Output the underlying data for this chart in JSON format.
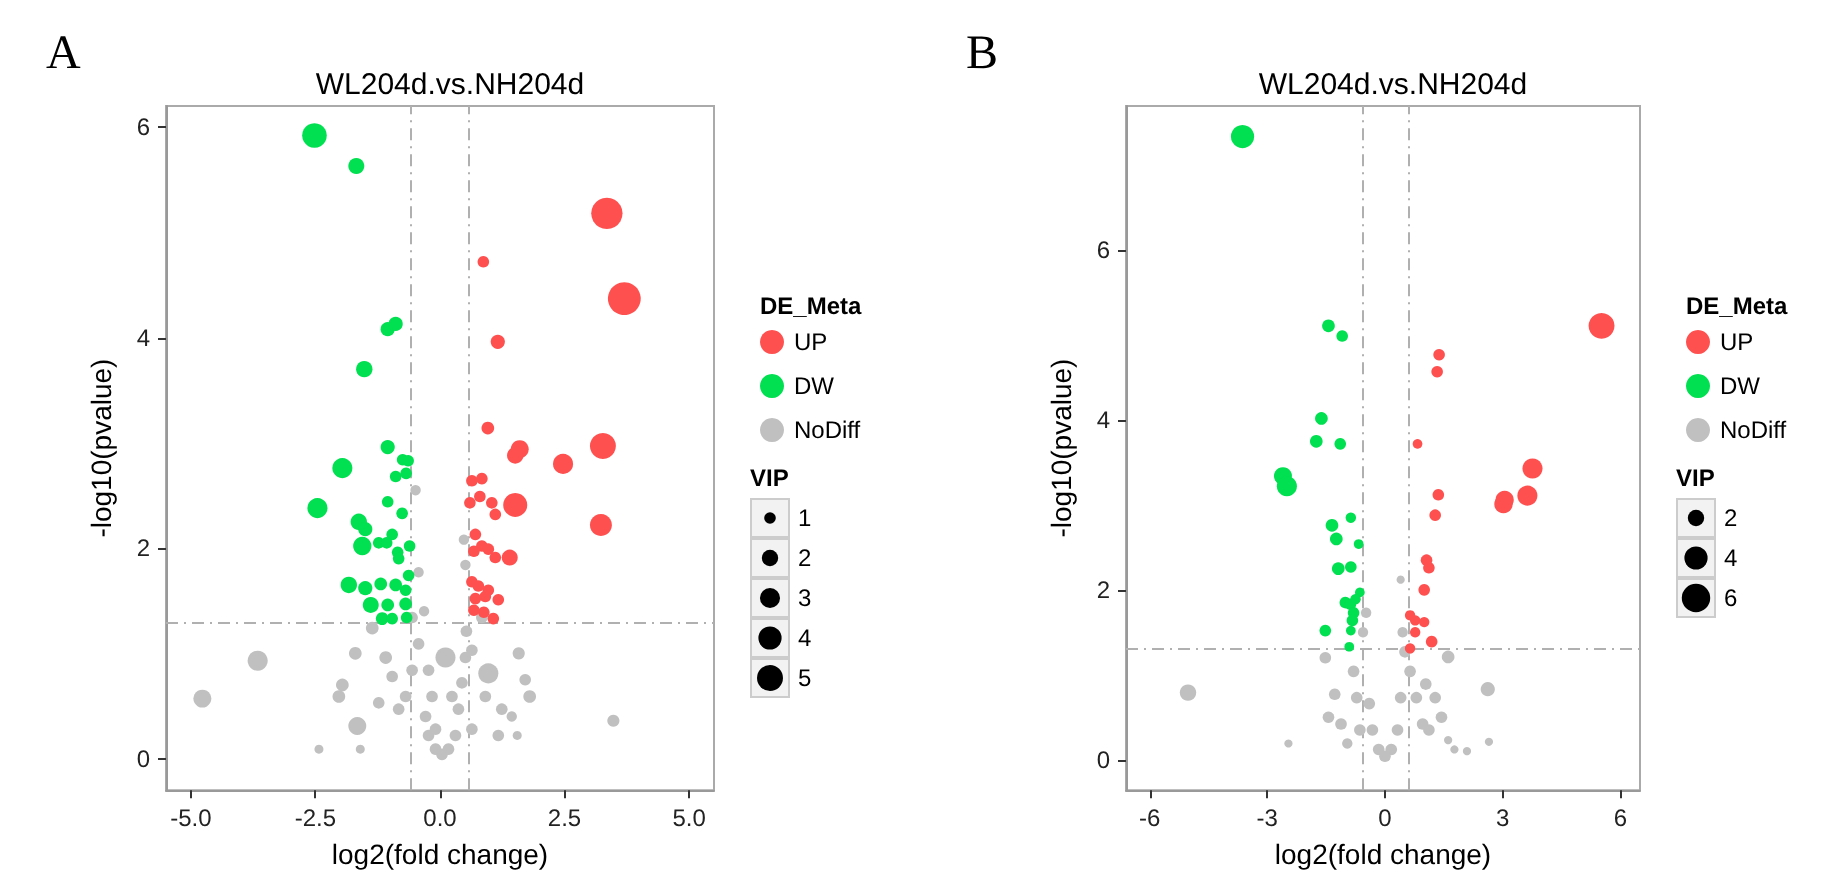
{
  "chart_data": [
    {
      "type": "bubble",
      "title": "WL204d.vs.NH204d",
      "xlabel": "log2(fold change)",
      "ylabel": "-log10(pvalue)",
      "legend_title": [
        "DE_Meta",
        "VIP"
      ],
      "annotations": [
        "A"
      ],
      "xlim": [
        -5.5,
        5.5
      ],
      "xticks": [
        {
          "value": -5,
          "label": "-5.0"
        },
        {
          "value": -2.5,
          "label": "-2.5"
        },
        {
          "value": 0,
          "label": "0.0"
        },
        {
          "value": 2.5,
          "label": "2.5"
        },
        {
          "value": 5,
          "label": "5.0"
        }
      ],
      "ylim": [
        -0.3,
        6.2
      ],
      "yticks": [
        0,
        2,
        4,
        6
      ],
      "grid": false,
      "legend": "right",
      "marker": "circle",
      "size_legend": [
        1,
        2,
        3,
        4,
        5
      ],
      "ref_lines": [
        {
          "axis": "x",
          "value": -0.58,
          "color": "#b0b0b0",
          "line_style": "dashed"
        },
        {
          "axis": "x",
          "value": 0.58,
          "color": "#b0b0b0",
          "line_style": "dashed"
        },
        {
          "axis": "y",
          "value": 1.3,
          "color": "#b0b0b0",
          "line_style": "dashed"
        }
      ],
      "series": [
        {
          "name": "UP",
          "color": "#ff5050",
          "x": [
            3.35,
            0.87,
            3.7,
            1.16,
            0.96,
            1.6,
            1.51,
            2.47,
            3.27,
            0.64,
            0.84,
            0.8,
            0.6,
            1.04,
            1.11,
            1.51,
            3.23,
            0.71,
            0.68,
            0.84,
            0.97,
            1.11,
            1.4,
            0.64,
            0.77,
            0.97,
            0.71,
            0.91,
            1.17,
            0.68,
            0.88,
            1.07
          ],
          "values": [
            5.18,
            4.72,
            4.37,
            3.96,
            3.14,
            2.94,
            2.88,
            2.8,
            2.97,
            2.64,
            2.66,
            2.49,
            2.43,
            2.43,
            2.32,
            2.41,
            2.22,
            2.13,
            1.97,
            2.02,
            1.99,
            1.91,
            1.91,
            1.68,
            1.64,
            1.6,
            1.52,
            1.54,
            1.51,
            1.41,
            1.39,
            1.33
          ],
          "sizes": [
            7.3,
            1,
            8,
            1.5,
            1.2,
            2.4,
            2,
            3,
            5,
            1,
            1,
            1,
            1,
            1,
            1,
            4.3,
            3.6,
            1,
            1,
            1,
            1,
            1,
            1.9,
            1,
            1,
            1,
            1,
            1,
            1,
            1,
            1,
            1
          ]
        },
        {
          "name": "DW",
          "color": "#00e050",
          "x": [
            -2.52,
            -1.68,
            -1.05,
            -0.89,
            -1.52,
            -1.05,
            -1.96,
            -0.75,
            -0.64,
            -0.89,
            -0.68,
            -2.46,
            -1.05,
            -0.76,
            -1.63,
            -1.5,
            -1.56,
            -1.23,
            -0.96,
            -1.07,
            -0.85,
            -0.61,
            -0.83,
            -0.63,
            -1.83,
            -1.5,
            -1.19,
            -0.89,
            -0.69,
            -1.39,
            -1.05,
            -0.69,
            -1.16,
            -0.96,
            -0.67
          ],
          "values": [
            5.92,
            5.63,
            4.08,
            4.13,
            3.7,
            2.96,
            2.76,
            2.84,
            2.83,
            2.68,
            2.71,
            2.38,
            2.44,
            2.33,
            2.25,
            2.18,
            2.02,
            2.05,
            2.13,
            2.05,
            1.96,
            2.02,
            1.9,
            1.74,
            1.65,
            1.62,
            1.66,
            1.65,
            1.6,
            1.46,
            1.46,
            1.47,
            1.33,
            1.33,
            1.34
          ],
          "sizes": [
            4.5,
            1.9,
            1.5,
            1.5,
            2,
            1.5,
            3,
            1,
            1,
            1,
            1,
            3,
            1,
            1,
            2,
            1.5,
            2.5,
            1,
            1,
            1,
            1,
            1,
            1,
            1,
            2,
            1.5,
            1.2,
            1.2,
            1,
            1.9,
            1.2,
            1.2,
            1.2,
            1,
            1
          ]
        },
        {
          "name": "NoDiff",
          "color": "#c0c0c0",
          "x": [
            -4.77,
            -3.66,
            -2.43,
            -1.6,
            3.48,
            1.58,
            1.71,
            1.8,
            -1.96,
            -2.03,
            -1.66,
            -1.7,
            -1.36,
            -1.09,
            -0.96,
            -1.23,
            -0.83,
            -0.69,
            -0.56,
            -0.43,
            -0.49,
            -0.43,
            -0.32,
            -0.56,
            -0.29,
            -0.23,
            -0.09,
            0.04,
            0.17,
            0.31,
            0.11,
            0.37,
            0.44,
            0.51,
            0.53,
            0.51,
            0.48,
            0.64,
            0.84,
            0.97,
            0.91,
            1.24,
            0.64,
            1.17,
            1.55,
            1.44,
            -0.16,
            -0.09,
            -0.23,
            0.24
          ],
          "values": [
            0.57,
            0.93,
            0.09,
            0.09,
            0.36,
            1.0,
            0.75,
            0.59,
            0.7,
            0.59,
            0.31,
            1.0,
            1.24,
            0.96,
            0.78,
            0.53,
            0.47,
            0.59,
            0.84,
            1.09,
            2.55,
            1.77,
            1.4,
            1.34,
            0.4,
            0.22,
            0.09,
            0.04,
            0.09,
            0.22,
            0.96,
            0.47,
            0.72,
            0.96,
            1.21,
            1.84,
            2.08,
            1.03,
            1.34,
            0.81,
            0.59,
            0.47,
            0.28,
            0.22,
            0.22,
            0.4,
            0.59,
            0.28,
            0.84,
            0.59
          ],
          "sizes": [
            2.4,
            3,
            0.6,
            0.6,
            1.1,
            1.1,
            1,
            1.2,
            1.2,
            1.2,
            2.4,
            1.2,
            1.2,
            1.2,
            1,
            1,
            1,
            1,
            1,
            1,
            0.8,
            0.8,
            0.8,
            1,
            1,
            1,
            1,
            1,
            1,
            1,
            3,
            1,
            1,
            1,
            1,
            0.8,
            0.8,
            1,
            1,
            3,
            1,
            1,
            1,
            1,
            0.6,
            0.8,
            1,
            1,
            1,
            1
          ]
        }
      ]
    },
    {
      "type": "bubble",
      "title": "WL204d.vs.NH204d",
      "xlabel": "log2(fold change)",
      "ylabel": "-log10(pvalue)",
      "legend_title": [
        "DE_Meta",
        "VIP"
      ],
      "annotations": [
        "B"
      ],
      "xlim": [
        -6.6,
        6.5
      ],
      "xticks": [
        -6,
        -3,
        0,
        3,
        6
      ],
      "ylim": [
        -0.36,
        7.7
      ],
      "yticks": [
        0,
        2,
        4,
        6
      ],
      "grid": false,
      "legend": "right",
      "marker": "circle",
      "size_legend": [
        2,
        4,
        6
      ],
      "ref_lines": [
        {
          "axis": "x",
          "value": -0.58,
          "color": "#b0b0b0",
          "line_style": "dashed"
        },
        {
          "axis": "x",
          "value": 0.58,
          "color": "#b0b0b0",
          "line_style": "dashed"
        },
        {
          "axis": "y",
          "value": 1.3,
          "color": "#b0b0b0",
          "line_style": "dashed"
        }
      ],
      "series": [
        {
          "name": "UP",
          "color": "#ff5050",
          "x": [
            5.52,
            1.38,
            1.33,
            0.83,
            3.76,
            3.63,
            3.02,
            3.05,
            1.36,
            1.28,
            1.06,
            1.12,
            1.0,
            0.64,
            0.77,
            1.0,
            0.77,
            1.19,
            0.64
          ],
          "values": [
            5.11,
            4.77,
            4.57,
            3.72,
            3.43,
            3.11,
            3.01,
            3.06,
            3.12,
            2.88,
            2.35,
            2.26,
            2.0,
            1.7,
            1.64,
            1.62,
            1.5,
            1.39,
            1.31
          ],
          "sizes": [
            5,
            1,
            1,
            0.7,
            3,
            3,
            2.5,
            2.5,
            1,
            1,
            1,
            1,
            1,
            0.8,
            0.8,
            0.8,
            0.8,
            1,
            0.8
          ]
        },
        {
          "name": "DW",
          "color": "#00e050",
          "x": [
            -3.63,
            -1.44,
            -1.09,
            -1.62,
            -1.75,
            -1.14,
            -2.6,
            -2.5,
            -0.87,
            -1.35,
            -1.24,
            -0.67,
            -0.87,
            -1.19,
            -0.64,
            -0.75,
            -1.01,
            -0.88,
            -0.8,
            -0.83,
            -1.52,
            -0.87,
            -0.91
          ],
          "values": [
            7.34,
            5.11,
            4.99,
            4.02,
            3.75,
            3.72,
            3.34,
            3.22,
            2.85,
            2.76,
            2.6,
            2.54,
            2.27,
            2.25,
            1.97,
            1.89,
            1.85,
            1.83,
            1.73,
            1.64,
            1.52,
            1.52,
            1.33
          ],
          "sizes": [
            4,
            1.2,
            1,
            1.2,
            1.2,
            1,
            2.4,
            3,
            0.8,
            1.2,
            1.2,
            0.7,
            1,
            1.2,
            0.7,
            0.8,
            1,
            1,
            1,
            1,
            1,
            0.7,
            0.7
          ]
        },
        {
          "name": "NoDiff",
          "color": "#c0c0c0",
          "x": [
            -5.02,
            2.62,
            1.61,
            -2.46,
            2.65,
            2.09,
            1.61,
            1.77,
            -1.52,
            -1.28,
            -1.44,
            -0.96,
            -0.8,
            -0.72,
            -0.64,
            -0.56,
            -0.48,
            -0.4,
            -0.32,
            -0.16,
            0,
            0.16,
            0.32,
            0.4,
            0.45,
            0.4,
            0.51,
            0.64,
            0.8,
            0.96,
            1.04,
            1.28,
            1.44,
            1.12,
            -1.12
          ],
          "values": [
            0.79,
            0.83,
            1.21,
            0.19,
            0.21,
            0.1,
            0.23,
            0.12,
            1.2,
            0.77,
            0.5,
            0.19,
            1.04,
            0.73,
            0.35,
            1.5,
            1.73,
            0.66,
            0.35,
            0.12,
            0.04,
            0.12,
            0.35,
            0.73,
            1.5,
            2.12,
            1.27,
            1.04,
            0.73,
            0.42,
            0.89,
            0.73,
            0.5,
            0.35,
            0.42
          ],
          "sizes": [
            2,
            1.5,
            1.2,
            0.5,
            0.5,
            0.5,
            0.5,
            0.5,
            1,
            1,
            1,
            0.8,
            1,
            1,
            1,
            0.8,
            0.8,
            1,
            1,
            1,
            1,
            1,
            1,
            1,
            0.8,
            0.5,
            1,
            1,
            1,
            1,
            1,
            1,
            1,
            1,
            1
          ]
        }
      ]
    }
  ]
}
